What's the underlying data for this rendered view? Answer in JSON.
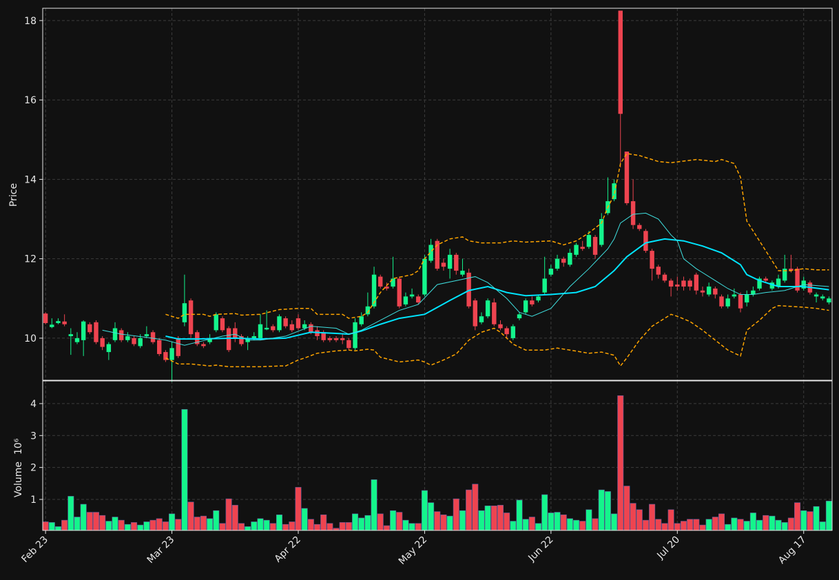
{
  "chart_data": {
    "type": "candlestick",
    "ylabel": "Price",
    "ylim": [
      8.94,
      18.31
    ],
    "yticks": [
      10,
      12,
      14,
      16,
      18
    ],
    "xlim": [
      -0.45,
      124.5
    ],
    "grid": true,
    "up_color": "#14f58c",
    "down_color": "#ee4450",
    "categories": [
      "Feb 23",
      null,
      null,
      null,
      null,
      null,
      null,
      null,
      null,
      null,
      null,
      null,
      null,
      null,
      null,
      null,
      null,
      null,
      null,
      null,
      "Mar 23",
      null,
      null,
      null,
      null,
      null,
      null,
      null,
      null,
      null,
      null,
      null,
      null,
      null,
      null,
      null,
      null,
      null,
      null,
      null,
      "Apr 22",
      null,
      null,
      null,
      null,
      null,
      null,
      null,
      null,
      null,
      null,
      null,
      null,
      null,
      null,
      null,
      null,
      null,
      null,
      null,
      "May 22",
      null,
      null,
      null,
      null,
      null,
      null,
      null,
      null,
      null,
      null,
      null,
      null,
      null,
      null,
      null,
      null,
      null,
      null,
      null,
      "Jun 22",
      null,
      null,
      null,
      null,
      null,
      null,
      null,
      null,
      null,
      null,
      null,
      null,
      null,
      null,
      null,
      null,
      null,
      null,
      null,
      "Jul 20",
      null,
      null,
      null,
      null,
      null,
      null,
      null,
      null,
      null,
      null,
      null,
      null,
      null,
      null,
      null,
      null,
      null,
      null,
      null,
      "Aug 17",
      null,
      null,
      null,
      null
    ],
    "open": [
      10.62,
      10.28,
      10.38,
      10.42,
      10.05,
      9.9,
      9.95,
      10.35,
      10.4,
      10.0,
      9.65,
      9.95,
      10.2,
      9.95,
      10.0,
      9.8,
      10.05,
      10.15,
      9.95,
      9.65,
      9.45,
      10.0,
      10.4,
      10.95,
      10.15,
      9.85,
      9.9,
      10.2,
      10.5,
      10.25,
      10.25,
      10.05,
      9.9,
      10.0,
      10.0,
      10.22,
      10.3,
      10.2,
      10.5,
      10.35,
      10.5,
      10.25,
      10.35,
      10.2,
      10.15,
      10.0,
      10.0,
      10.0,
      9.95,
      9.75,
      10.35,
      10.6,
      10.8,
      11.55,
      11.3,
      11.3,
      11.5,
      10.85,
      11.05,
      11.05,
      11.1,
      11.95,
      12.45,
      11.9,
      11.75,
      12.1,
      11.6,
      11.65,
      10.95,
      10.4,
      10.55,
      10.9,
      10.35,
      10.25,
      10.0,
      10.5,
      10.65,
      10.95,
      10.95,
      11.15,
      11.6,
      11.75,
      12.0,
      11.85,
      12.1,
      12.3,
      12.3,
      12.55,
      12.35,
      13.15,
      13.5,
      18.25,
      14.7,
      13.45,
      12.85,
      12.7,
      12.2,
      11.8,
      11.6,
      11.45,
      11.35,
      11.45,
      11.45,
      11.6,
      11.2,
      11.1,
      11.25,
      11.05,
      10.8,
      11.05,
      11.1,
      10.9,
      11.1,
      11.25,
      11.5,
      11.25,
      11.3,
      11.45,
      11.75,
      11.75,
      11.25,
      11.4,
      11.05,
      11.0,
      10.9
    ],
    "high": [
      10.65,
      10.5,
      10.5,
      10.6,
      10.25,
      10.15,
      10.45,
      10.4,
      10.45,
      10.05,
      9.9,
      10.4,
      10.25,
      10.15,
      10.05,
      10.1,
      10.3,
      10.2,
      10.0,
      9.7,
      9.9,
      10.05,
      11.6,
      11.0,
      10.2,
      9.9,
      10.1,
      10.65,
      10.55,
      10.3,
      10.4,
      10.1,
      10.05,
      10.15,
      10.6,
      10.7,
      10.35,
      10.6,
      10.55,
      10.45,
      10.6,
      10.45,
      10.4,
      10.3,
      10.2,
      10.05,
      10.05,
      10.1,
      10.0,
      10.5,
      10.65,
      11.15,
      11.8,
      11.6,
      11.4,
      12.05,
      11.55,
      11.15,
      11.25,
      11.1,
      12.1,
      12.5,
      12.5,
      12.0,
      12.25,
      12.15,
      12.0,
      11.75,
      11.0,
      10.65,
      11.0,
      11.0,
      10.45,
      10.3,
      10.35,
      10.65,
      11.0,
      11.05,
      11.1,
      12.05,
      11.85,
      12.1,
      12.05,
      12.25,
      12.4,
      12.45,
      12.7,
      12.6,
      13.15,
      14.05,
      14.0,
      18.25,
      14.7,
      14.0,
      12.9,
      12.75,
      12.25,
      11.85,
      11.65,
      11.5,
      11.55,
      11.55,
      11.5,
      11.65,
      11.3,
      11.4,
      11.3,
      11.1,
      11.1,
      11.25,
      11.15,
      11.2,
      11.3,
      11.55,
      11.55,
      11.45,
      11.6,
      12.1,
      12.1,
      11.8,
      11.55,
      11.45,
      11.15,
      11.1,
      11.05
    ],
    "low": [
      10.35,
      10.25,
      10.35,
      10.3,
      9.58,
      9.85,
      9.55,
      10.1,
      9.85,
      9.7,
      9.45,
      9.9,
      9.9,
      9.9,
      9.8,
      9.75,
      10.0,
      9.85,
      9.55,
      9.4,
      8.9,
      9.5,
      10.3,
      10.0,
      9.8,
      9.75,
      9.85,
      10.15,
      10.15,
      9.65,
      9.9,
      9.8,
      9.7,
      9.95,
      9.95,
      10.2,
      10.15,
      10.15,
      10.25,
      10.15,
      10.2,
      10.2,
      10.1,
      9.95,
      9.9,
      9.9,
      9.9,
      9.85,
      9.7,
      9.7,
      10.3,
      10.55,
      10.75,
      11.25,
      11.2,
      11.25,
      10.75,
      10.8,
      11.0,
      10.85,
      11.05,
      11.9,
      11.7,
      11.7,
      11.5,
      11.6,
      11.55,
      10.75,
      10.2,
      10.35,
      10.5,
      10.3,
      10.2,
      10.0,
      9.95,
      10.45,
      10.6,
      10.8,
      10.9,
      11.1,
      11.55,
      11.7,
      11.8,
      11.8,
      12.05,
      12.2,
      12.25,
      12.0,
      12.3,
      13.1,
      13.45,
      14.3,
      13.35,
      12.75,
      12.7,
      12.15,
      11.45,
      11.5,
      11.4,
      11.05,
      11.2,
      11.2,
      11.2,
      11.1,
      11.05,
      11.05,
      11.0,
      10.75,
      10.75,
      11.0,
      10.65,
      10.8,
      11.05,
      11.2,
      11.4,
      11.2,
      11.25,
      11.4,
      11.65,
      11.15,
      11.2,
      11.1,
      10.9,
      10.95,
      10.85
    ],
    "close": [
      10.38,
      10.34,
      10.43,
      10.35,
      10.1,
      10.0,
      10.42,
      10.15,
      9.9,
      9.78,
      9.85,
      10.25,
      9.95,
      10.05,
      9.85,
      10.0,
      10.1,
      9.9,
      9.6,
      9.45,
      9.75,
      9.55,
      10.88,
      10.1,
      9.85,
      9.8,
      10.0,
      10.6,
      10.2,
      9.7,
      10.0,
      9.85,
      10.0,
      10.05,
      10.35,
      10.26,
      10.2,
      10.55,
      10.3,
      10.2,
      10.25,
      10.35,
      10.15,
      10.05,
      9.95,
      9.95,
      9.95,
      9.95,
      9.75,
      10.4,
      10.55,
      10.8,
      11.6,
      11.3,
      11.25,
      11.5,
      10.8,
      11.05,
      11.1,
      10.9,
      12.0,
      12.35,
      11.75,
      11.8,
      12.1,
      11.7,
      11.7,
      10.8,
      10.3,
      10.55,
      10.95,
      10.35,
      10.25,
      10.1,
      10.3,
      10.6,
      10.95,
      10.85,
      11.05,
      11.5,
      11.75,
      12.0,
      11.9,
      12.15,
      12.35,
      12.25,
      12.6,
      12.1,
      13.0,
      13.45,
      13.9,
      15.65,
      13.4,
      12.85,
      12.75,
      12.2,
      11.75,
      11.6,
      11.45,
      11.3,
      11.3,
      11.3,
      11.3,
      11.2,
      11.15,
      11.3,
      11.1,
      10.8,
      11.0,
      11.1,
      10.75,
      11.1,
      11.2,
      11.5,
      11.45,
      11.4,
      11.5,
      11.75,
      11.7,
      11.2,
      11.45,
      11.15,
      11.1,
      11.05,
      11.0
    ],
    "overlays": [
      {
        "color": "#00e5ff",
        "width": 2,
        "dashed": false,
        "x": [
          19,
          21,
          24,
          30,
          34,
          38,
          42,
          46,
          48,
          50,
          53,
          56,
          60,
          64,
          67,
          70,
          73,
          76,
          80,
          84,
          87,
          90,
          92,
          95,
          98,
          101,
          104,
          107,
          110,
          111,
          113,
          116,
          120,
          124
        ],
        "values": [
          10.05,
          9.98,
          9.98,
          10.0,
          9.98,
          10.0,
          10.15,
          10.12,
          10.1,
          10.18,
          10.35,
          10.5,
          10.6,
          10.95,
          11.2,
          11.3,
          11.15,
          11.07,
          11.1,
          11.15,
          11.3,
          11.7,
          12.05,
          12.4,
          12.5,
          12.45,
          12.32,
          12.15,
          11.85,
          11.6,
          11.45,
          11.3,
          11.3,
          11.22
        ]
      },
      {
        "color": "#3fe0e0",
        "width": 1,
        "dashed": false,
        "x": [
          9,
          12,
          16,
          19,
          22,
          24,
          28,
          30,
          32,
          34,
          38,
          42,
          46,
          48,
          50,
          53,
          56,
          59,
          62,
          65,
          68,
          70,
          73,
          75,
          77,
          80,
          83,
          86,
          89,
          90,
          91,
          93,
          95,
          97,
          99,
          100,
          101,
          103,
          106,
          108,
          110,
          112,
          114,
          117,
          120,
          124
        ],
        "values": [
          10.2,
          10.1,
          10.02,
          9.95,
          9.82,
          9.9,
          10.05,
          10.1,
          9.95,
          9.95,
          10.05,
          10.3,
          10.25,
          10.1,
          10.2,
          10.45,
          10.7,
          10.85,
          11.35,
          11.45,
          11.55,
          11.4,
          11.0,
          10.65,
          10.55,
          10.75,
          11.3,
          11.75,
          12.25,
          12.5,
          12.9,
          13.12,
          13.15,
          13.0,
          12.6,
          12.45,
          12.0,
          11.75,
          11.45,
          11.25,
          11.1,
          11.1,
          11.15,
          11.2,
          11.35,
          11.3
        ]
      },
      {
        "color": "#ffa500",
        "width": 1.5,
        "dashed": true,
        "x": [
          19,
          21,
          22,
          25,
          26,
          27,
          30,
          31,
          34,
          37,
          40,
          42,
          43,
          47,
          48,
          50,
          51,
          53,
          55,
          58,
          59,
          60,
          62,
          64,
          66,
          67,
          69,
          72,
          74,
          76,
          80,
          82,
          84,
          86,
          88,
          89,
          90,
          91,
          92,
          94,
          97,
          99,
          103,
          106,
          107,
          109,
          110,
          111,
          113,
          114,
          116,
          118,
          120,
          122,
          124
        ],
        "values": [
          10.6,
          10.5,
          10.6,
          10.6,
          10.55,
          10.6,
          10.62,
          10.58,
          10.6,
          10.72,
          10.75,
          10.75,
          10.6,
          10.6,
          10.5,
          10.55,
          10.65,
          11.15,
          11.5,
          11.6,
          11.7,
          12.0,
          12.35,
          12.5,
          12.55,
          12.45,
          12.4,
          12.4,
          12.45,
          12.42,
          12.45,
          12.35,
          12.45,
          12.65,
          12.9,
          13.3,
          13.6,
          14.4,
          14.65,
          14.6,
          14.45,
          14.42,
          14.5,
          14.45,
          14.5,
          14.4,
          14.05,
          12.95,
          12.45,
          12.2,
          11.7,
          11.7,
          11.75,
          11.72,
          11.72
        ]
      },
      {
        "color": "#ffa500",
        "width": 1.5,
        "dashed": true,
        "x": [
          19,
          21,
          23,
          26,
          27,
          29,
          31,
          34,
          37,
          38,
          40,
          41,
          43,
          46,
          48,
          49,
          51,
          52,
          53,
          56,
          59,
          60,
          61,
          63,
          65,
          67,
          69,
          71,
          72,
          74,
          76,
          79,
          81,
          83,
          86,
          88,
          90,
          91,
          92,
          94,
          96,
          98,
          99,
          100,
          102,
          104,
          106,
          108,
          110,
          111,
          113,
          115,
          116,
          118,
          120,
          122,
          124
        ],
        "values": [
          9.5,
          9.35,
          9.35,
          9.3,
          9.32,
          9.28,
          9.28,
          9.28,
          9.3,
          9.3,
          9.45,
          9.5,
          9.62,
          9.68,
          9.7,
          9.68,
          9.72,
          9.7,
          9.52,
          9.4,
          9.45,
          9.4,
          9.32,
          9.45,
          9.6,
          9.95,
          10.15,
          10.25,
          10.15,
          9.85,
          9.7,
          9.7,
          9.75,
          9.7,
          9.62,
          9.65,
          9.57,
          9.3,
          9.5,
          9.95,
          10.3,
          10.5,
          10.6,
          10.55,
          10.42,
          10.2,
          9.95,
          9.7,
          9.55,
          10.2,
          10.45,
          10.75,
          10.82,
          10.8,
          10.78,
          10.75,
          10.7
        ]
      }
    ],
    "volume": {
      "ylabel": "Volume",
      "scale_label": "10⁶",
      "ylim": [
        0.03,
        4.71
      ],
      "yticks": [
        1,
        2,
        3,
        4
      ],
      "values": [
        0.3,
        0.28,
        0.15,
        0.35,
        1.1,
        0.45,
        0.85,
        0.6,
        0.6,
        0.5,
        0.32,
        0.45,
        0.35,
        0.22,
        0.28,
        0.2,
        0.3,
        0.35,
        0.4,
        0.3,
        0.55,
        0.38,
        3.82,
        0.92,
        0.45,
        0.48,
        0.4,
        0.65,
        0.25,
        1.02,
        0.82,
        0.25,
        0.15,
        0.3,
        0.4,
        0.35,
        0.25,
        0.52,
        0.22,
        0.3,
        1.38,
        0.72,
        0.38,
        0.22,
        0.52,
        0.25,
        0.1,
        0.28,
        0.28,
        0.55,
        0.42,
        0.5,
        1.62,
        0.55,
        0.18,
        0.65,
        0.6,
        0.35,
        0.25,
        0.25,
        1.28,
        0.9,
        0.62,
        0.52,
        0.48,
        1.02,
        0.65,
        1.3,
        1.48,
        0.65,
        0.8,
        0.8,
        0.82,
        0.58,
        0.32,
        0.98,
        0.38,
        0.45,
        0.25,
        1.15,
        0.58,
        0.6,
        0.52,
        0.4,
        0.35,
        0.32,
        0.68,
        0.4,
        1.3,
        1.25,
        0.55,
        4.25,
        1.42,
        0.88,
        0.68,
        0.35,
        0.85,
        0.38,
        0.25,
        0.68,
        0.25,
        0.32,
        0.38,
        0.38,
        0.2,
        0.38,
        0.45,
        0.55,
        0.22,
        0.42,
        0.38,
        0.32,
        0.58,
        0.35,
        0.5,
        0.48,
        0.35,
        0.28,
        0.42,
        0.9,
        0.65,
        0.62,
        0.78,
        0.3,
        0.95
      ]
    }
  }
}
